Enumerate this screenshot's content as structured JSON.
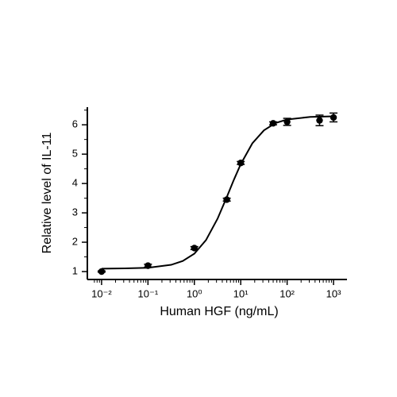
{
  "chart_data": {
    "type": "scatter",
    "x_label": "Human HGF (ng/mL)",
    "y_label": "Relative level of IL-11",
    "xscale": "log",
    "xlim": [
      0.0065,
      1950
    ],
    "ylim": [
      0.73,
      6.6
    ],
    "xticks": [
      {
        "value": 0.01,
        "label": "10⁻²"
      },
      {
        "value": 0.1,
        "label": "10⁻¹"
      },
      {
        "value": 1,
        "label": "10⁰"
      },
      {
        "value": 10,
        "label": "10¹"
      },
      {
        "value": 100,
        "label": "10²"
      },
      {
        "value": 1000,
        "label": "10³"
      }
    ],
    "xminorticks": [
      0.007,
      0.008,
      0.009,
      0.02,
      0.03,
      0.04,
      0.05,
      0.06,
      0.07,
      0.08,
      0.09,
      0.2,
      0.3,
      0.4,
      0.5,
      0.6,
      0.7,
      0.8,
      0.9,
      2,
      3,
      4,
      5,
      6,
      7,
      8,
      9,
      20,
      30,
      40,
      50,
      60,
      70,
      80,
      90,
      200,
      300,
      400,
      500,
      600,
      700,
      800,
      900
    ],
    "yticks": [
      1,
      2,
      3,
      4,
      5,
      6
    ],
    "yminorticks": [
      1.5,
      2.5,
      3.5,
      4.5,
      5.5,
      6.5
    ],
    "color": "#000000",
    "series": [
      {
        "type": "line",
        "x": [
          0.01,
          0.0316,
          0.1,
          0.316,
          0.562,
          1,
          1.78,
          3.16,
          5.01,
          7.08,
          10,
          17.8,
          31.6,
          56.2,
          100,
          316,
          1000
        ],
        "values": [
          1.1,
          1.11,
          1.13,
          1.23,
          1.36,
          1.61,
          2.07,
          2.8,
          3.54,
          4.12,
          4.66,
          5.37,
          5.81,
          6.06,
          6.18,
          6.27,
          6.29
        ]
      },
      {
        "type": "scatter",
        "x": [
          0.01,
          0.1,
          1,
          5,
          10,
          50,
          100,
          500,
          1000
        ],
        "values": [
          1.0,
          1.2,
          1.8,
          3.45,
          4.7,
          6.05,
          6.1,
          6.15,
          6.25
        ],
        "errors": [
          0.02,
          0.05,
          0.05,
          0.05,
          0.05,
          0.05,
          0.12,
          0.18,
          0.15
        ]
      }
    ]
  }
}
